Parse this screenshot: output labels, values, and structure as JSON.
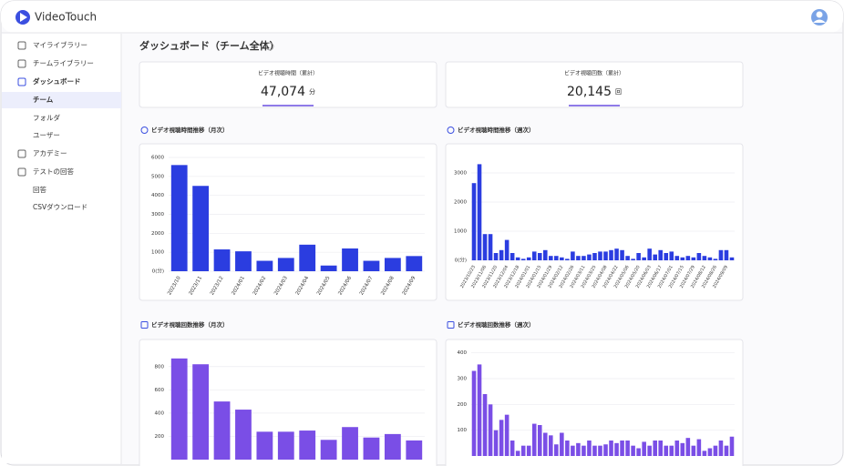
{
  "header": {
    "logo": "VideoTouch"
  },
  "sidebar": {
    "items": [
      "マイライブラリー",
      "チームライブラリー",
      "ダッシュボード",
      "チーム",
      "フォルダ",
      "ユーザー",
      "アカデミー",
      "テストの回答",
      "回答",
      "CSVダウンロード"
    ]
  },
  "page": {
    "title": "ダッシュボード（チーム全体）"
  },
  "stats": [
    {
      "label": "ビデオ視聴時間（累計）",
      "value": "47,074",
      "unit": "分"
    },
    {
      "label": "ビデオ視聴回数（累計）",
      "value": "20,145",
      "unit": "回"
    }
  ],
  "charts": [
    {
      "type": "bar",
      "title": "ビデオ視聴時間推移（月次）",
      "color": "#2b3de0",
      "categories": [
        "2023/10",
        "2023/11",
        "2023/12",
        "2024/01",
        "2024/02",
        "2024/03",
        "2024/04",
        "2024/05",
        "2024/06",
        "2024/07",
        "2024/08",
        "2024/09"
      ],
      "values": [
        5600,
        4500,
        1150,
        1050,
        550,
        700,
        1400,
        300,
        1200,
        550,
        700,
        800
      ],
      "ylim": [
        0,
        6000
      ],
      "yticks": [
        {
          "value": 0,
          "label": "0(分)"
        },
        1000,
        2000,
        3000,
        4000,
        5000,
        6000
      ],
      "grid": true
    },
    {
      "type": "bar",
      "title": "ビデオ視聴時間推移（週次）",
      "color": "#2b3de0",
      "categories": [
        "2023/10/23",
        null,
        "2023/11/06",
        null,
        "2023/11/20",
        null,
        "2023/12/04",
        null,
        "2023/12/18",
        null,
        "2024/01/01",
        null,
        "2024/01/15",
        null,
        "2024/01/29",
        null,
        "2024/02/12",
        null,
        "2024/02/26",
        null,
        "2024/03/11",
        null,
        "2024/03/25",
        null,
        "2024/04/08",
        null,
        "2024/04/22",
        null,
        "2024/05/06",
        null,
        "2024/05/20",
        null,
        "2024/06/03",
        null,
        "2024/06/17",
        null,
        "2024/07/01",
        null,
        "2024/07/15",
        null,
        "2024/07/29",
        null,
        "2024/08/12",
        null,
        "2024/08/26",
        null,
        "2024/09/09",
        null
      ],
      "values": [
        2650,
        3300,
        900,
        900,
        250,
        350,
        700,
        250,
        100,
        50,
        100,
        300,
        250,
        350,
        150,
        150,
        100,
        50,
        300,
        150,
        150,
        200,
        250,
        300,
        300,
        350,
        400,
        350,
        150,
        50,
        250,
        100,
        400,
        200,
        350,
        250,
        300,
        150,
        100,
        150,
        100,
        250,
        150,
        100,
        50,
        350,
        350,
        100
      ],
      "ylim": [
        0,
        3500
      ],
      "yticks": [
        {
          "value": 0,
          "label": "0(分)"
        },
        1000,
        2000,
        3000
      ],
      "grid": true
    },
    {
      "type": "bar",
      "title": "ビデオ視聴回数推移（月次）",
      "color": "#7a4ee6",
      "values": [
        870,
        820,
        500,
        430,
        240,
        240,
        250,
        170,
        280,
        190,
        220,
        165
      ],
      "ylim": [
        0,
        900
      ],
      "yticks": [
        200,
        400,
        600,
        800
      ],
      "grid": true
    },
    {
      "type": "bar",
      "title": "ビデオ視聴回数推移（週次）",
      "color": "#7a4ee6",
      "values": [
        330,
        355,
        240,
        200,
        100,
        140,
        160,
        60,
        20,
        40,
        40,
        125,
        120,
        90,
        80,
        45,
        90,
        60,
        40,
        50,
        40,
        60,
        40,
        40,
        45,
        60,
        50,
        60,
        60,
        40,
        30,
        55,
        40,
        60,
        60,
        40,
        40,
        60,
        50,
        70,
        40,
        65,
        20,
        30,
        40,
        60,
        40,
        75
      ],
      "ylim": [
        0,
        420
      ],
      "yticks": [
        100,
        200,
        300,
        400
      ],
      "grid": true
    }
  ]
}
